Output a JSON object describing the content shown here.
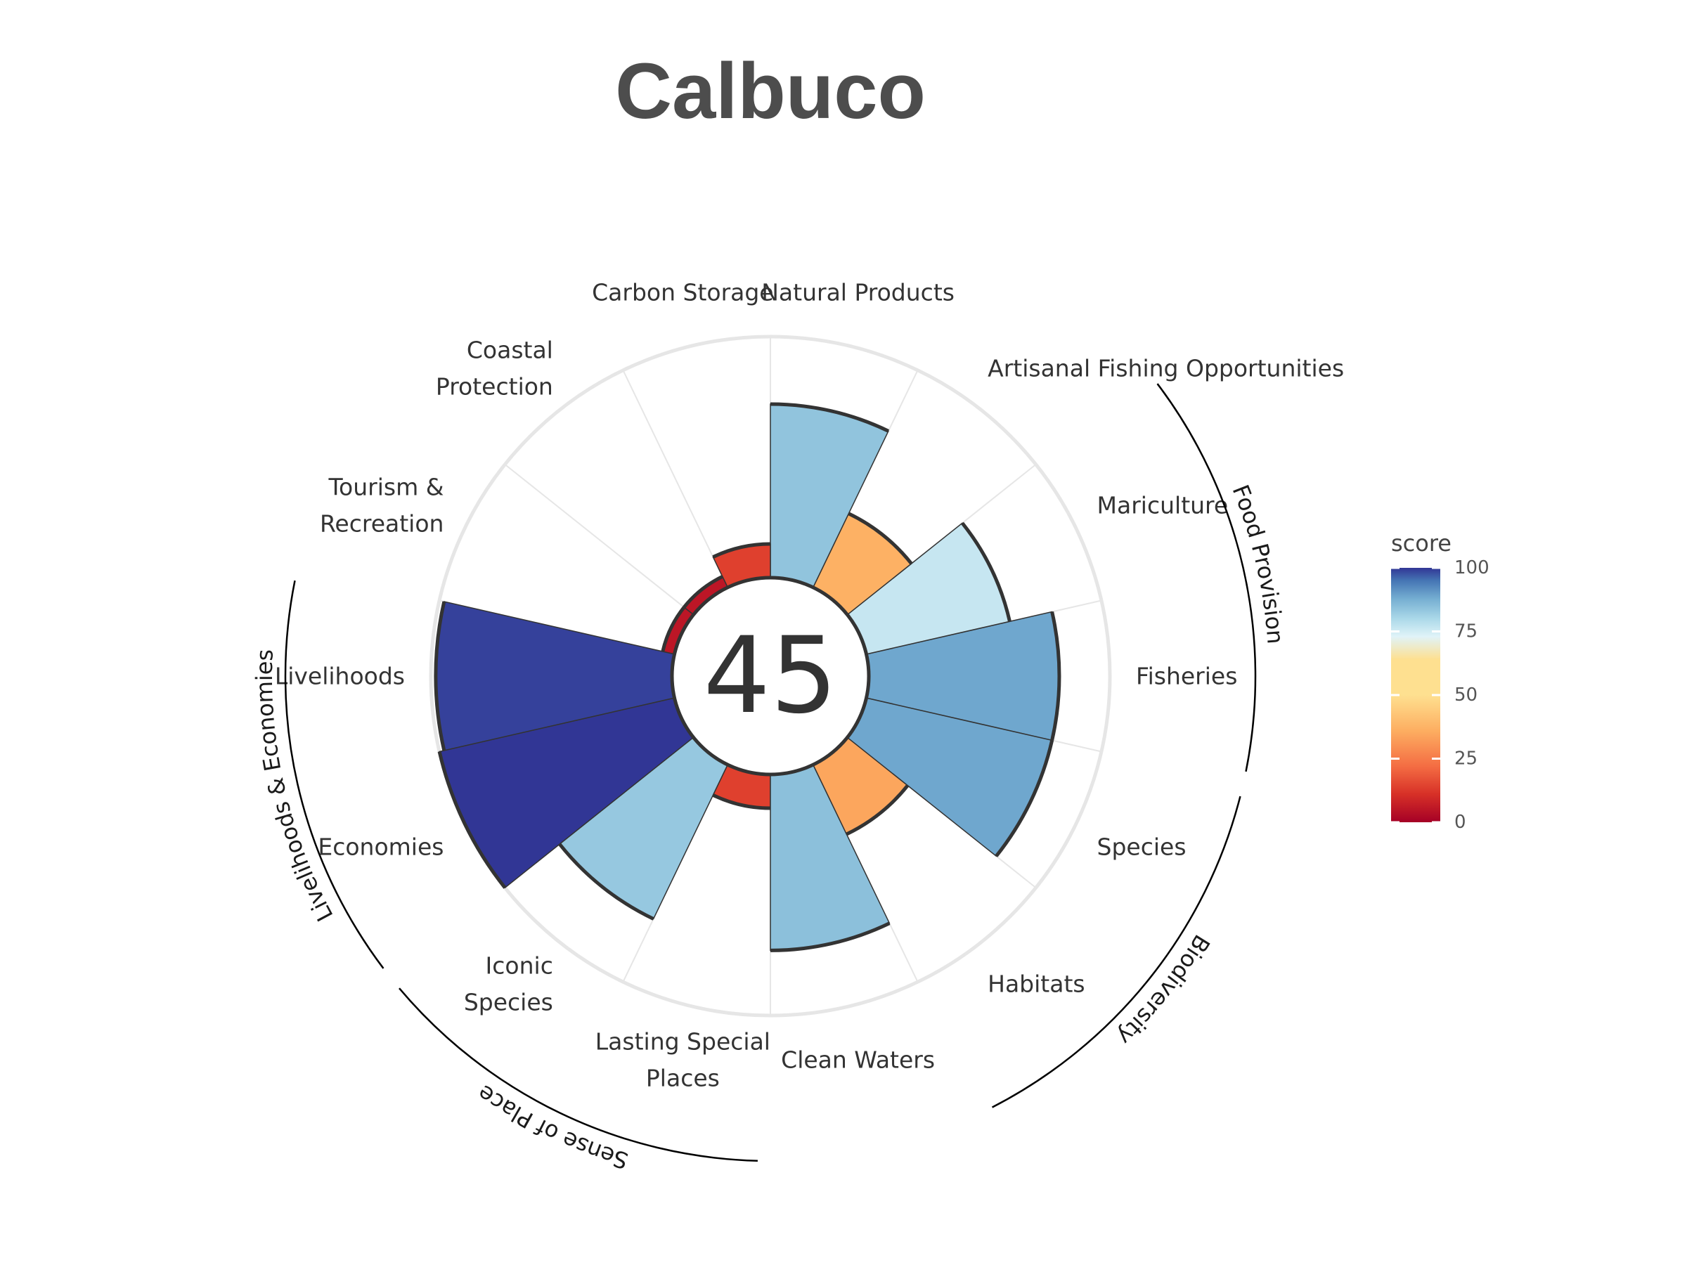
{
  "chart_data": {
    "type": "polar_bar",
    "title": "Calbuco",
    "center_score": "45",
    "categories": [
      {
        "label": "Fisheries",
        "lines": [
          "Fisheries"
        ],
        "value": 79
      },
      {
        "label": "Mariculture",
        "lines": [
          "Mariculture"
        ],
        "value": 61
      },
      {
        "label": "Artisanal Fishing Opportunities",
        "lines": [
          "Artisanal Fishing Opportunities"
        ],
        "value": 34
      },
      {
        "label": "Natural Products",
        "lines": [
          "Natural Products"
        ],
        "value": 72
      },
      {
        "label": "Carbon Storage",
        "lines": [
          "Carbon Storage"
        ],
        "value": 14
      },
      {
        "label": "Coastal Protection",
        "lines": [
          "Coastal",
          "Protection"
        ],
        "value": 5
      },
      {
        "label": "Tourism & Recreation",
        "lines": [
          "Tourism &",
          "Recreation"
        ],
        "value": 5
      },
      {
        "label": "Livelihoods",
        "lines": [
          "Livelihoods"
        ],
        "value": 98
      },
      {
        "label": "Economies",
        "lines": [
          "Economies"
        ],
        "value": 100
      },
      {
        "label": "Iconic Species",
        "lines": [
          "Iconic",
          "Species"
        ],
        "value": 71
      },
      {
        "label": "Lasting Special Places",
        "lines": [
          "Lasting Special",
          "Places"
        ],
        "value": 14
      },
      {
        "label": "Clean Waters",
        "lines": [
          "Clean Waters"
        ],
        "value": 73
      },
      {
        "label": "Habitats",
        "lines": [
          "Habitats"
        ],
        "value": 32
      },
      {
        "label": "Species",
        "lines": [
          "Species"
        ],
        "value": 79
      }
    ],
    "groups": [
      {
        "label": "Food Provision",
        "members": [
          "Fisheries",
          "Mariculture"
        ]
      },
      {
        "label": "Biodiversity",
        "members": [
          "Habitats",
          "Species"
        ]
      },
      {
        "label": "Sense of Place",
        "members": [
          "Iconic Species",
          "Lasting Special Places"
        ]
      },
      {
        "label": "Livelihoods & Economies",
        "members": [
          "Livelihoods",
          "Economies"
        ]
      }
    ],
    "rlim": [
      0,
      100
    ],
    "legend": {
      "title": "score",
      "position": "right",
      "ticks": [
        "100",
        "75",
        "50",
        "25",
        "0"
      ],
      "colors": [
        "#a50026",
        "#d73027",
        "#f46d43",
        "#fdae61",
        "#fee090",
        "#e0f3f8",
        "#abd9e9",
        "#74add1",
        "#4575b4",
        "#313695"
      ]
    }
  }
}
